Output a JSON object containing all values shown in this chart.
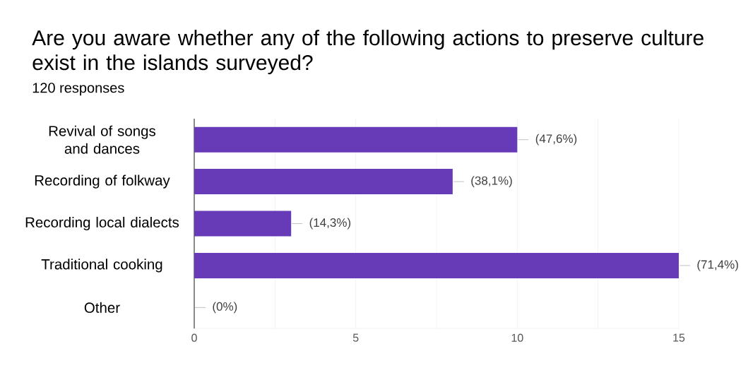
{
  "chart_data": {
    "type": "bar",
    "orientation": "horizontal",
    "title": "Are you aware whether any of the following actions to preserve culture exist in the islands surveyed?",
    "subtitle": "120 responses",
    "categories": [
      "Revival of songs and dances",
      "Recording of folkway",
      "Recording local dialects",
      "Traditional cooking",
      "Other"
    ],
    "values": [
      10,
      8,
      3,
      15,
      0
    ],
    "annotations": [
      {
        "text": "(47,6%)",
        "x": 10,
        "y": "Revival of songs and dances"
      },
      {
        "text": "(38,1%)",
        "x": 8,
        "y": "Recording of folkway"
      },
      {
        "text": "(14,3%)",
        "x": 3,
        "y": "Recording local dialects"
      },
      {
        "text": "(71,4%)",
        "x": 15,
        "y": "Traditional cooking"
      },
      {
        "text": "(0%)",
        "x": 0,
        "y": "Other"
      }
    ],
    "color": "#673ab7",
    "xlim": [
      0,
      15
    ],
    "xticks": [
      0,
      {
        "value": 2.5,
        "label": null
      },
      5,
      {
        "value": 7.5,
        "label": null
      },
      10,
      {
        "value": 12.5,
        "label": null
      },
      15
    ],
    "grid": "x"
  }
}
